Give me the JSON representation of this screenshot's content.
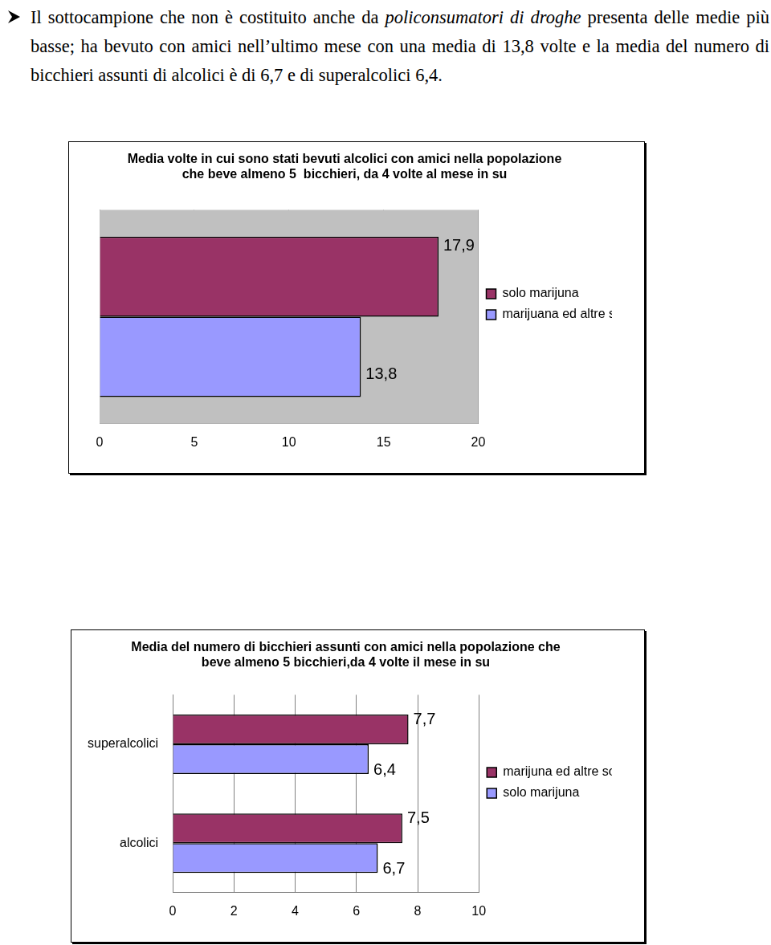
{
  "paragraph": {
    "before": "Il sottocampione che non è costituito anche da ",
    "italic": "policonsumatori di droghe",
    "after": " presenta delle medie più basse; ha bevuto con amici nell’ultimo mese con una media di 13,8 volte e la media del numero di bicchieri assunti di alcolici è di 6,7 e di superalcolici 6,4."
  },
  "chart_data": [
    {
      "type": "bar",
      "orientation": "horizontal",
      "title": [
        "Media volte in cui sono stati bevuti alcolici con amici nella popolazione",
        "che beve almeno 5  bicchieri, da 4 volte al mese in su"
      ],
      "categories": [
        null
      ],
      "series": [
        {
          "name": "solo marijuna",
          "color": "#993366",
          "values": [
            17.9
          ],
          "value_labels": [
            "17,9"
          ]
        },
        {
          "name": "marijuana ed altre sostanze",
          "color": "#9999ff",
          "values": [
            13.8
          ],
          "value_labels": [
            "13,8"
          ]
        }
      ],
      "xlim": [
        0,
        20
      ],
      "xticks": [
        0,
        5,
        10,
        15,
        20
      ],
      "grid": true,
      "legend": "right",
      "data_labels": true
    },
    {
      "type": "bar",
      "orientation": "horizontal",
      "title": [
        "Media del numero di bicchieri assunti con amici nella popolazione che",
        "beve almeno 5 bicchieri,da 4 volte il mese in su"
      ],
      "categories": [
        "superalcolici",
        "alcolici"
      ],
      "series": [
        {
          "name": "marijuna ed altre sostanze",
          "color": "#993366",
          "values": [
            7.7,
            7.5
          ],
          "value_labels": [
            "7,7",
            "7,5"
          ]
        },
        {
          "name": "solo marijuna",
          "color": "#9999ff",
          "values": [
            6.4,
            6.7
          ],
          "value_labels": [
            "6,4",
            "6,7"
          ]
        }
      ],
      "xlim": [
        0,
        10
      ],
      "xticks": [
        0,
        2,
        4,
        6,
        8,
        10
      ],
      "grid": true,
      "legend": "right",
      "data_labels": true
    }
  ]
}
